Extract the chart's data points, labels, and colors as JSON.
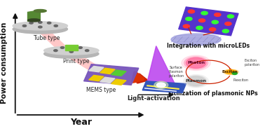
{
  "bg_color": "#ffffff",
  "axis_arrow_color": "#111111",
  "xlabel": "Year",
  "ylabel": "Power consumption",
  "ylabel_fontsize": 7.5,
  "xlabel_fontsize": 9,
  "tube_label": "Tube type",
  "print_label": "Print type",
  "mems_label": "MEMS type",
  "light_label": "Light-activation",
  "microled_label": "Integration with microLEDs",
  "plasmon_label": "Utilization of plasmonic NPs",
  "photon_label": "Photon",
  "plasmon_node": "Plasmon",
  "exciton_label": "Exciton",
  "plexciton_label": "Plexciton",
  "exciton_polariton": "Exciton\npolariton",
  "surface_plasmon": "Surface\nPlasmon\npolariton"
}
